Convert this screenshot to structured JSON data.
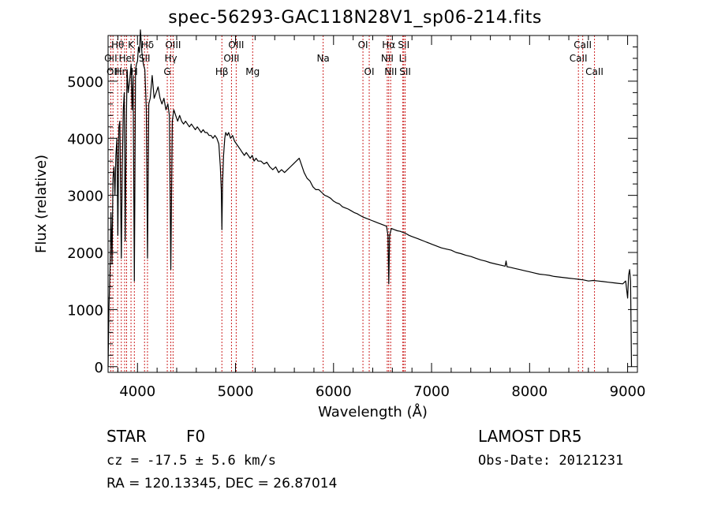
{
  "title": "spec-56293-GAC118N28V1_sp06-214.fits",
  "info": {
    "object_class": "STAR",
    "subclass": "F0",
    "survey": "LAMOST DR5",
    "cz": "cz = -17.5 ± 5.6 km/s",
    "obs_date": "Obs-Date: 20121231",
    "coords": "RA = 120.13345, DEC =  26.87014"
  },
  "chart_data": {
    "type": "line",
    "title": "spec-56293-GAC118N28V1_sp06-214.fits",
    "xlabel": "Wavelength (Å)",
    "ylabel": "Flux (relative)",
    "xlim": [
      3700,
      9100
    ],
    "ylim": [
      -100,
      5800
    ],
    "xticks": [
      4000,
      5000,
      6000,
      7000,
      8000,
      9000
    ],
    "yticks": [
      0,
      1000,
      2000,
      3000,
      4000,
      5000
    ],
    "grid": false,
    "line_color": "#000000",
    "marker_color": "#cc2222",
    "series": [
      {
        "points": [
          [
            3700,
            0
          ],
          [
            3710,
            1100
          ],
          [
            3720,
            1700
          ],
          [
            3730,
            2700
          ],
          [
            3740,
            1800
          ],
          [
            3750,
            3300
          ],
          [
            3760,
            3500
          ],
          [
            3770,
            3000
          ],
          [
            3780,
            3700
          ],
          [
            3790,
            4000
          ],
          [
            3800,
            2300
          ],
          [
            3810,
            4200
          ],
          [
            3820,
            4300
          ],
          [
            3835,
            1900
          ],
          [
            3845,
            3500
          ],
          [
            3855,
            4500
          ],
          [
            3865,
            4800
          ],
          [
            3875,
            2200
          ],
          [
            3885,
            4200
          ],
          [
            3895,
            5200
          ],
          [
            3905,
            4800
          ],
          [
            3920,
            5000
          ],
          [
            3935,
            5300
          ],
          [
            3945,
            4500
          ],
          [
            3955,
            5100
          ],
          [
            3968,
            1500
          ],
          [
            3980,
            5200
          ],
          [
            3990,
            5300
          ],
          [
            4000,
            5350
          ],
          [
            4010,
            5600
          ],
          [
            4020,
            5500
          ],
          [
            4030,
            5900
          ],
          [
            4045,
            5500
          ],
          [
            4060,
            5300
          ],
          [
            4075,
            5200
          ],
          [
            4090,
            4500
          ],
          [
            4102,
            1900
          ],
          [
            4115,
            4600
          ],
          [
            4130,
            4700
          ],
          [
            4150,
            5100
          ],
          [
            4170,
            4700
          ],
          [
            4190,
            4800
          ],
          [
            4210,
            4900
          ],
          [
            4230,
            4700
          ],
          [
            4250,
            4600
          ],
          [
            4270,
            4700
          ],
          [
            4290,
            4500
          ],
          [
            4310,
            4600
          ],
          [
            4325,
            4400
          ],
          [
            4340,
            1700
          ],
          [
            4355,
            4300
          ],
          [
            4370,
            4500
          ],
          [
            4390,
            4400
          ],
          [
            4410,
            4300
          ],
          [
            4430,
            4400
          ],
          [
            4450,
            4300
          ],
          [
            4470,
            4250
          ],
          [
            4490,
            4300
          ],
          [
            4510,
            4250
          ],
          [
            4530,
            4200
          ],
          [
            4550,
            4250
          ],
          [
            4570,
            4200
          ],
          [
            4590,
            4150
          ],
          [
            4610,
            4200
          ],
          [
            4630,
            4150
          ],
          [
            4650,
            4100
          ],
          [
            4670,
            4150
          ],
          [
            4690,
            4100
          ],
          [
            4710,
            4100
          ],
          [
            4730,
            4050
          ],
          [
            4750,
            4050
          ],
          [
            4770,
            4000
          ],
          [
            4790,
            4050
          ],
          [
            4810,
            4000
          ],
          [
            4830,
            3900
          ],
          [
            4845,
            3500
          ],
          [
            4855,
            3100
          ],
          [
            4861,
            2400
          ],
          [
            4868,
            3200
          ],
          [
            4878,
            3700
          ],
          [
            4890,
            4000
          ],
          [
            4900,
            4100
          ],
          [
            4915,
            4050
          ],
          [
            4930,
            4100
          ],
          [
            4950,
            4000
          ],
          [
            4970,
            4050
          ],
          [
            4990,
            3950
          ],
          [
            5010,
            3900
          ],
          [
            5030,
            3850
          ],
          [
            5050,
            3800
          ],
          [
            5070,
            3750
          ],
          [
            5090,
            3700
          ],
          [
            5110,
            3750
          ],
          [
            5130,
            3700
          ],
          [
            5150,
            3650
          ],
          [
            5170,
            3700
          ],
          [
            5190,
            3600
          ],
          [
            5210,
            3650
          ],
          [
            5230,
            3600
          ],
          [
            5260,
            3600
          ],
          [
            5290,
            3550
          ],
          [
            5320,
            3580
          ],
          [
            5350,
            3500
          ],
          [
            5380,
            3450
          ],
          [
            5410,
            3500
          ],
          [
            5440,
            3400
          ],
          [
            5470,
            3450
          ],
          [
            5500,
            3400
          ],
          [
            5530,
            3450
          ],
          [
            5560,
            3500
          ],
          [
            5590,
            3550
          ],
          [
            5620,
            3600
          ],
          [
            5650,
            3650
          ],
          [
            5670,
            3550
          ],
          [
            5700,
            3400
          ],
          [
            5730,
            3300
          ],
          [
            5760,
            3250
          ],
          [
            5790,
            3150
          ],
          [
            5820,
            3100
          ],
          [
            5850,
            3100
          ],
          [
            5880,
            3050
          ],
          [
            5910,
            3000
          ],
          [
            5940,
            2980
          ],
          [
            5970,
            2950
          ],
          [
            6000,
            2900
          ],
          [
            6030,
            2870
          ],
          [
            6060,
            2850
          ],
          [
            6090,
            2800
          ],
          [
            6120,
            2780
          ],
          [
            6150,
            2760
          ],
          [
            6180,
            2730
          ],
          [
            6210,
            2700
          ],
          [
            6240,
            2680
          ],
          [
            6270,
            2650
          ],
          [
            6300,
            2620
          ],
          [
            6330,
            2600
          ],
          [
            6360,
            2580
          ],
          [
            6390,
            2560
          ],
          [
            6420,
            2540
          ],
          [
            6450,
            2520
          ],
          [
            6480,
            2500
          ],
          [
            6510,
            2480
          ],
          [
            6540,
            2460
          ],
          [
            6555,
            2300
          ],
          [
            6563,
            1450
          ],
          [
            6572,
            2300
          ],
          [
            6590,
            2420
          ],
          [
            6620,
            2400
          ],
          [
            6650,
            2380
          ],
          [
            6680,
            2370
          ],
          [
            6710,
            2350
          ],
          [
            6740,
            2330
          ],
          [
            6770,
            2300
          ],
          [
            6800,
            2280
          ],
          [
            6830,
            2260
          ],
          [
            6860,
            2240
          ],
          [
            6890,
            2220
          ],
          [
            6920,
            2200
          ],
          [
            6950,
            2180
          ],
          [
            6980,
            2160
          ],
          [
            7010,
            2140
          ],
          [
            7040,
            2120
          ],
          [
            7070,
            2100
          ],
          [
            7100,
            2080
          ],
          [
            7150,
            2060
          ],
          [
            7200,
            2040
          ],
          [
            7250,
            2000
          ],
          [
            7300,
            1980
          ],
          [
            7350,
            1950
          ],
          [
            7400,
            1930
          ],
          [
            7450,
            1900
          ],
          [
            7500,
            1870
          ],
          [
            7550,
            1850
          ],
          [
            7600,
            1820
          ],
          [
            7650,
            1800
          ],
          [
            7700,
            1780
          ],
          [
            7750,
            1760
          ],
          [
            7760,
            1850
          ],
          [
            7770,
            1750
          ],
          [
            7800,
            1740
          ],
          [
            7850,
            1720
          ],
          [
            7900,
            1700
          ],
          [
            7950,
            1680
          ],
          [
            8000,
            1660
          ],
          [
            8050,
            1640
          ],
          [
            8100,
            1620
          ],
          [
            8150,
            1610
          ],
          [
            8200,
            1600
          ],
          [
            8250,
            1580
          ],
          [
            8300,
            1570
          ],
          [
            8350,
            1560
          ],
          [
            8400,
            1550
          ],
          [
            8450,
            1540
          ],
          [
            8500,
            1530
          ],
          [
            8550,
            1520
          ],
          [
            8600,
            1500
          ],
          [
            8650,
            1510
          ],
          [
            8700,
            1500
          ],
          [
            8750,
            1490
          ],
          [
            8800,
            1480
          ],
          [
            8850,
            1470
          ],
          [
            8900,
            1460
          ],
          [
            8950,
            1450
          ],
          [
            8980,
            1500
          ],
          [
            9000,
            1200
          ],
          [
            9010,
            1600
          ],
          [
            9020,
            1700
          ],
          [
            9030,
            1500
          ],
          [
            9040,
            0
          ]
        ]
      }
    ],
    "line_markers": [
      {
        "x": 3727,
        "label": "OII",
        "row": 1
      },
      {
        "x": 3750,
        "label": "OII",
        "row": 2
      },
      {
        "x": 3798,
        "label": "Hθ",
        "row": 0
      },
      {
        "x": 3835,
        "label": "Hη",
        "row": 2
      },
      {
        "x": 3869,
        "label": "",
        "row": 0
      },
      {
        "x": 3889,
        "label": "HeI",
        "row": 1
      },
      {
        "x": 3934,
        "label": "K",
        "row": 0
      },
      {
        "x": 3968,
        "label": "H",
        "row": 2
      },
      {
        "x": 4072,
        "label": "SII",
        "row": 1
      },
      {
        "x": 4102,
        "label": "Hδ",
        "row": 0
      },
      {
        "x": 4304,
        "label": "G",
        "row": 2
      },
      {
        "x": 4340,
        "label": "Hγ",
        "row": 1
      },
      {
        "x": 4363,
        "label": "OIII",
        "row": 0
      },
      {
        "x": 4861,
        "label": "Hβ",
        "row": 2
      },
      {
        "x": 4959,
        "label": "OIII",
        "row": 1
      },
      {
        "x": 5007,
        "label": "OIII",
        "row": 0
      },
      {
        "x": 5175,
        "label": "Mg",
        "row": 2
      },
      {
        "x": 5894,
        "label": "Na",
        "row": 1
      },
      {
        "x": 6300,
        "label": "OI",
        "row": 0
      },
      {
        "x": 6364,
        "label": "OI",
        "row": 2
      },
      {
        "x": 6548,
        "label": "NII",
        "row": 1
      },
      {
        "x": 6563,
        "label": "Hα",
        "row": 0
      },
      {
        "x": 6583,
        "label": "NII",
        "row": 2
      },
      {
        "x": 6707,
        "label": "Li",
        "row": 1
      },
      {
        "x": 6716,
        "label": "SII",
        "row": 0
      },
      {
        "x": 6731,
        "label": "SII",
        "row": 2
      },
      {
        "x": 8498,
        "label": "CaII",
        "row": 1
      },
      {
        "x": 8542,
        "label": "CaII",
        "row": 0
      },
      {
        "x": 8662,
        "label": "CaII",
        "row": 2
      }
    ]
  }
}
